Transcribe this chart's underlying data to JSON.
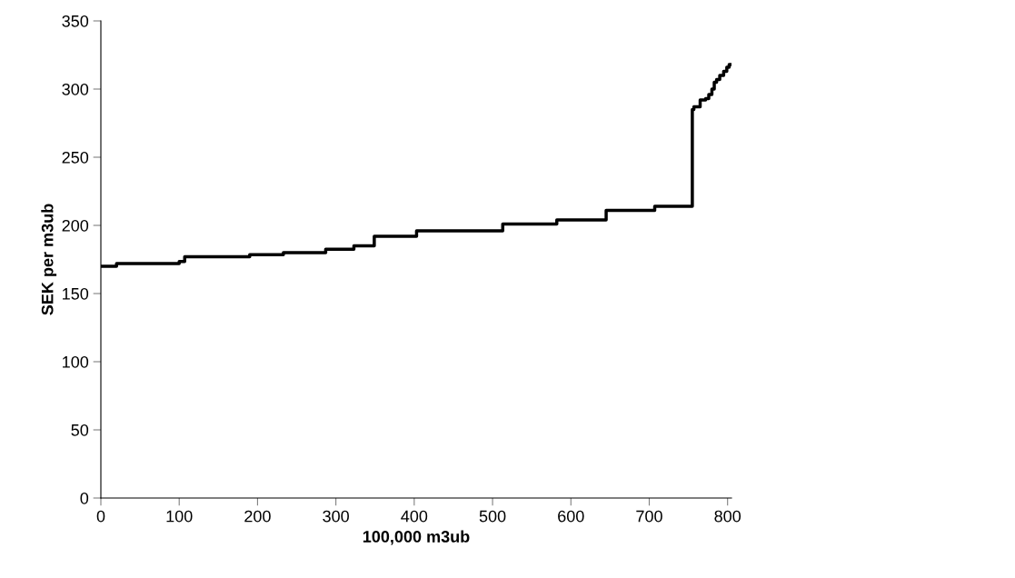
{
  "chart_data": {
    "type": "step",
    "xlabel": "100,000 m3ub",
    "ylabel": "SEK per m3ub",
    "x": [
      0,
      20,
      100,
      107,
      190,
      233,
      287,
      323,
      349,
      403,
      513,
      582,
      645,
      707,
      755,
      757,
      765,
      772,
      776,
      780,
      783,
      786,
      790,
      795,
      799,
      802,
      804
    ],
    "series": [
      {
        "color": "#000000",
        "values": [
          170,
          172,
          173.5,
          177,
          178.5,
          180,
          182.5,
          185,
          192,
          196,
          201,
          204,
          211,
          214,
          285,
          287,
          292,
          293,
          296,
          300,
          305,
          307,
          310,
          313,
          316,
          318,
          318
        ]
      }
    ],
    "xlim": [
      0,
      805
    ],
    "xticks": [
      0,
      100,
      200,
      300,
      400,
      500,
      600,
      700,
      800
    ],
    "ylim": [
      0,
      350
    ],
    "yticks": [
      0,
      50,
      100,
      150,
      200,
      250,
      300,
      350
    ],
    "grid": false,
    "legend": false,
    "line_style": "solid",
    "marker": "none"
  }
}
